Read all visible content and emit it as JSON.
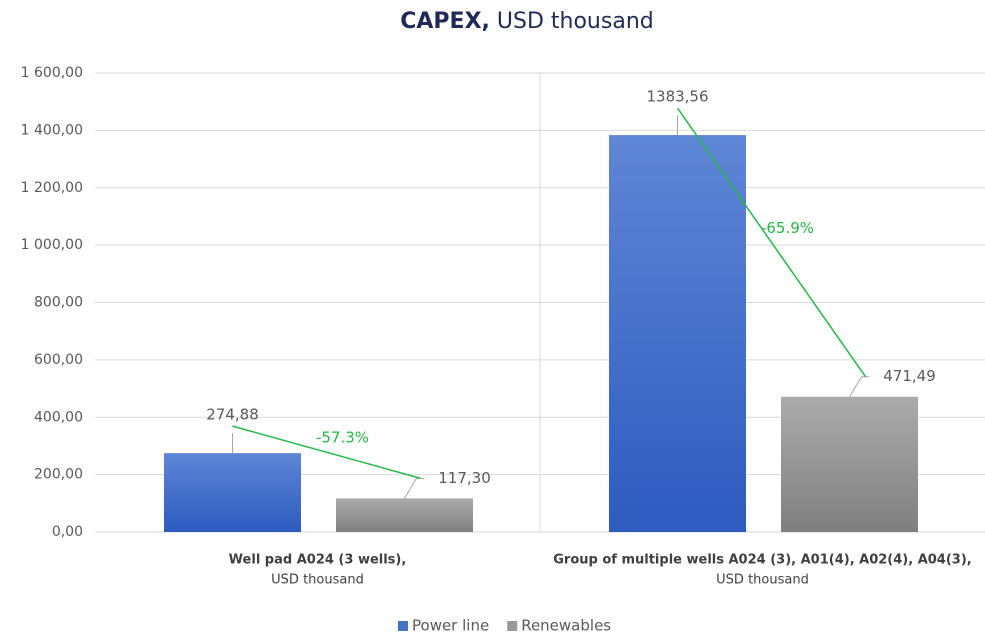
{
  "chart_data": {
    "type": "bar",
    "title": [
      "CAPEX,",
      "USD thousand"
    ],
    "categories": [
      [
        "Well pad A024 (3 wells),",
        "USD thousand"
      ],
      [
        "Group of multiple wells A024 (3), A01(4), A02(4), A04(3),",
        "USD thousand"
      ]
    ],
    "series": [
      {
        "name": "Power line",
        "color": "#4472c4",
        "values": [
          274.88,
          1383.56
        ],
        "value_labels": [
          "274,88",
          "1383,56"
        ]
      },
      {
        "name": "Renewables",
        "color": "#999999",
        "values": [
          117.3,
          471.49
        ],
        "value_labels": [
          "117,30",
          "471,49"
        ]
      }
    ],
    "annotations": [
      "-57.3%",
      "-65.9%"
    ],
    "annotation_color": "#22bb44",
    "ylim": [
      0,
      1600
    ],
    "yticks": [
      {
        "value": 0,
        "label": "0,00"
      },
      {
        "value": 200,
        "label": "200,00"
      },
      {
        "value": 400,
        "label": "400,00"
      },
      {
        "value": 600,
        "label": "600,00"
      },
      {
        "value": 800,
        "label": "800,00"
      },
      {
        "value": 1000,
        "label": "1 000,00"
      },
      {
        "value": 1200,
        "label": "1 200,00"
      },
      {
        "value": 1400,
        "label": "1 400,00"
      },
      {
        "value": 1600,
        "label": "1 600,00"
      }
    ],
    "grid": true,
    "legend": "bottom"
  }
}
